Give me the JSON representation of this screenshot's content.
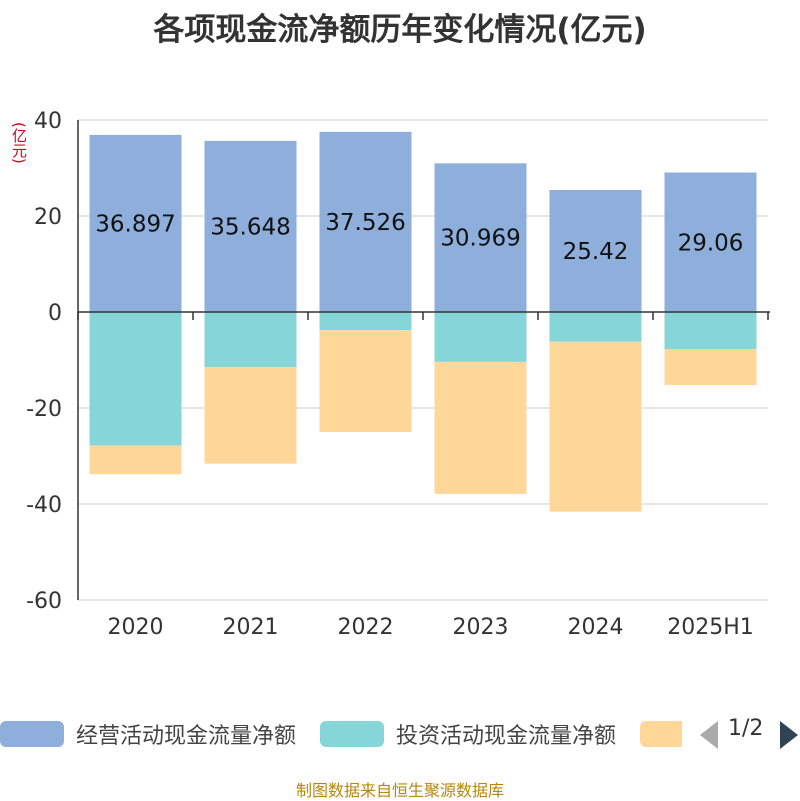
{
  "chart_data": {
    "type": "bar",
    "stacked": true,
    "title": "各项现金流净额历年变化情况(亿元)",
    "unit_label": "(亿元)",
    "categories": [
      "2020",
      "2021",
      "2022",
      "2023",
      "2024",
      "2025H1"
    ],
    "ylim": [
      -60,
      40
    ],
    "yticks": [
      40,
      20,
      0,
      -20,
      -40,
      -60
    ],
    "grid": true,
    "series": [
      {
        "name": "经营活动现金流量净额",
        "color": "#8eaedb",
        "values": [
          36.897,
          35.648,
          37.526,
          30.969,
          25.42,
          29.06
        ],
        "labels": [
          "36.897",
          "35.648",
          "37.526",
          "30.969",
          "25.42",
          "29.06"
        ]
      },
      {
        "name": "投资活动现金流量净额",
        "color": "#86d5d8",
        "values": [
          -27.8,
          -11.5,
          -3.8,
          -10.4,
          -6.2,
          -7.7
        ]
      },
      {
        "name": "",
        "color": "#ffd899",
        "values": [
          -6.0,
          -20.1,
          -21.2,
          -27.5,
          -35.4,
          -7.5
        ]
      }
    ]
  },
  "legend": {
    "items": [
      {
        "label": "经营活动现金流量净额",
        "color": "#8eaedb"
      },
      {
        "label": "投资活动现金流量净额",
        "color": "#86d5d8"
      },
      {
        "label": "",
        "color": "#ffd899"
      }
    ],
    "pager": "1/2"
  },
  "footer": {
    "source": "制图数据来自恒生聚源数据库"
  }
}
